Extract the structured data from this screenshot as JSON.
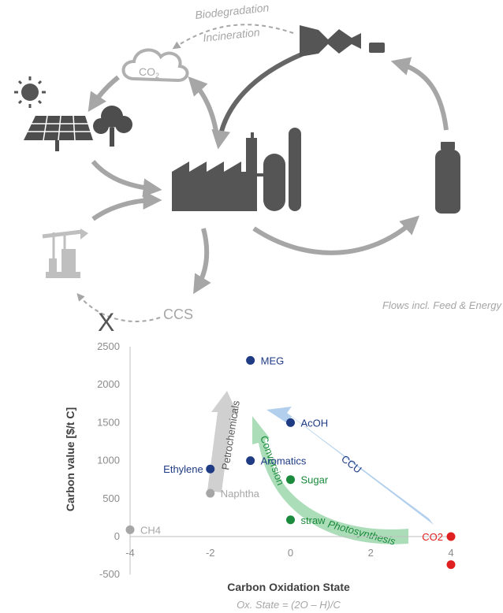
{
  "cycle": {
    "biodegradation": "Biodegradation",
    "incineration": "Incineration",
    "co2_cloud": "CO",
    "co2_sub": "2",
    "ccs": "CCS",
    "x_mark": "X",
    "flows_note": "Flows incl. Feed & Energy",
    "icons": [
      "sun-icon",
      "solar-panel-icon",
      "tree-icon",
      "cloud-icon",
      "factory-icon",
      "bottle-icon",
      "crushed-bottle-icon",
      "oil-pump-icon"
    ]
  },
  "chart": {
    "xlabel": "Carbon Oxidation State",
    "ylabel": "Carbon value [$/t C]",
    "formula": "Ox. State = (2O – H)/C",
    "arrows": {
      "petrochemicals": "Petrochemicals",
      "conversion": "Conversion",
      "ccu": "CCU",
      "photosynthesis": "Photosynthesis"
    },
    "colors": {
      "navy": "#1f3b84",
      "green": "#1a8a3c",
      "gray": "#a6a6a6",
      "red": "#e02020"
    }
  },
  "chart_data": {
    "type": "scatter",
    "xlabel": "Carbon Oxidation State",
    "ylabel": "Carbon value [$/t C]",
    "xlim": [
      -4,
      4
    ],
    "ylim": [
      -500,
      2500
    ],
    "xticks": [
      "-4",
      "-2",
      "0",
      "2",
      "4"
    ],
    "yticks": [
      "2500",
      "2000",
      "1500",
      "1000",
      "500",
      "0",
      "-500"
    ],
    "points": [
      {
        "label": "MEG",
        "x": -1,
        "y": 2320,
        "group": "navy"
      },
      {
        "label": "AcOH",
        "x": 0,
        "y": 1500,
        "group": "navy"
      },
      {
        "label": "Aromatics",
        "x": -1,
        "y": 1000,
        "group": "navy"
      },
      {
        "label": "Ethylene",
        "x": -2,
        "y": 890,
        "group": "navy"
      },
      {
        "label": "Sugar",
        "x": 0,
        "y": 750,
        "group": "green"
      },
      {
        "label": "straw",
        "x": 0,
        "y": 220,
        "group": "green"
      },
      {
        "label": "Naphtha",
        "x": -2,
        "y": 570,
        "group": "gray"
      },
      {
        "label": "CH4",
        "x": -4,
        "y": 90,
        "group": "gray"
      },
      {
        "label": "CO2",
        "x": 4,
        "y": 0,
        "group": "red"
      },
      {
        "label": "",
        "x": 4,
        "y": -370,
        "group": "red"
      }
    ]
  }
}
